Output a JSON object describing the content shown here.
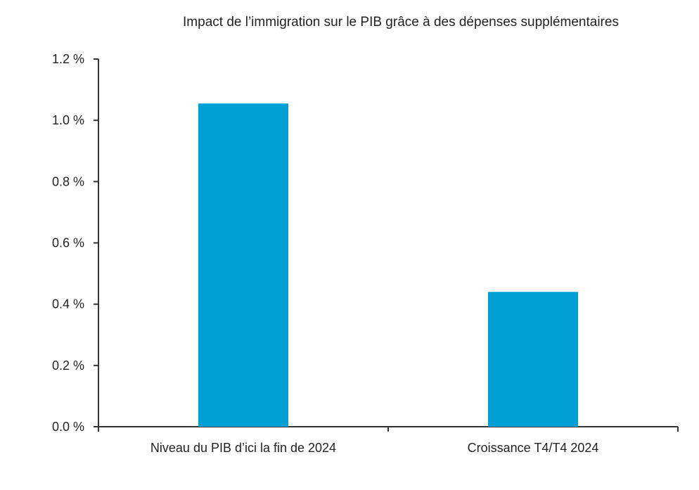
{
  "chart_data": {
    "type": "bar",
    "title": "Impact de l’immigration sur le PIB grâce à des dépenses supplémentaires",
    "categories": [
      "Niveau du PIB d’ici la fin de 2024",
      "Croissance T4/T4 2024"
    ],
    "values": [
      1.055,
      0.44
    ],
    "ylim": [
      0,
      1.2
    ],
    "yticks": [
      0,
      0.2,
      0.4,
      0.6,
      0.8,
      1.0,
      1.2
    ],
    "ytick_labels": [
      "0.0 %",
      "0.2 %",
      "0.4 %",
      "0.6 %",
      "0.8 %",
      "1.0 %",
      "1.2 %"
    ],
    "xlabel": "",
    "ylabel": "",
    "grid": false,
    "bar_color": "#009fd6"
  }
}
